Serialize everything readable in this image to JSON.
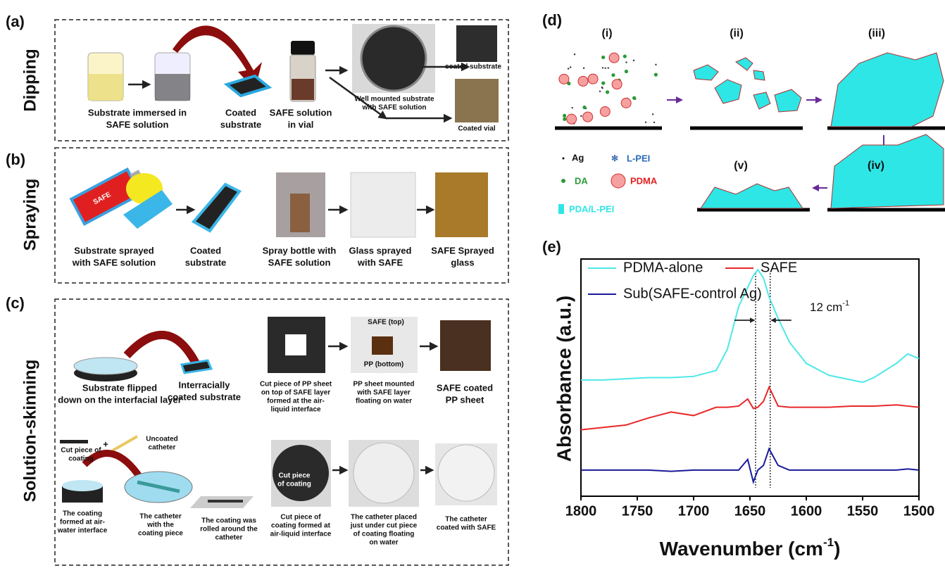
{
  "panel_a": {
    "label": "(a)",
    "title": "Dipping",
    "captions": [
      [
        "Substrate immersed in",
        "SAFE solution"
      ],
      [
        "Coated",
        "substrate"
      ],
      [
        "SAFE solution",
        "in vial"
      ],
      [
        "Well mounted substrate",
        "with SAFE solution"
      ],
      [
        "coated substrate"
      ],
      [
        "Coated vial"
      ]
    ]
  },
  "panel_b": {
    "label": "(b)",
    "title": "Spraying",
    "can_label": "SAFE",
    "captions": [
      [
        "Substrate sprayed",
        "with SAFE solution"
      ],
      [
        "Coated",
        "substrate"
      ],
      [
        "Spray bottle with",
        "SAFE solution"
      ],
      [
        "Glass sprayed",
        "with SAFE"
      ],
      [
        "SAFE Sprayed",
        "glass"
      ]
    ]
  },
  "panel_c": {
    "label": "(c)",
    "title": "Solution-skinning",
    "captions": [
      [
        "Substrate flipped",
        "down on the interfacial layer"
      ],
      [
        "Interracially",
        "coated substrate"
      ],
      [
        "Cut piece of PP sheet",
        "on top of SAFE layer",
        "formed at the air-",
        "liquid interface"
      ],
      [
        "PP sheet mounted",
        "with SAFE layer",
        "floating on water"
      ],
      [
        "SAFE coated",
        "PP sheet"
      ],
      [
        "Uncoated",
        "catheter"
      ],
      [
        "Cut piece of",
        "coating"
      ],
      [
        "The coating",
        "formed at air-",
        "water interface"
      ],
      [
        "The catheter",
        "with the",
        "coating piece"
      ],
      [
        "The coating was",
        "rolled around the",
        "catheter"
      ],
      [
        "Cut piece of",
        "coating formed at",
        "air-liquid interface"
      ],
      [
        "The catheter placed",
        "just under cut piece",
        "of coating floating",
        "on water"
      ],
      [
        "The catheter",
        "coated with SAFE"
      ]
    ],
    "photo_labels": [
      "SAFE (top)",
      "PP (bottom)",
      "Cut piece",
      "of coating"
    ],
    "plus": "+"
  },
  "panel_d": {
    "label": "(d)",
    "stages": [
      "(i)",
      "(ii)",
      "(iii)",
      "(iv)",
      "(v)"
    ],
    "legend": [
      "Ag",
      "L-PEI",
      "DA",
      "PDMA",
      "PDA/L-PEI"
    ]
  },
  "panel_e_label": "(e)",
  "chart_data": {
    "type": "line",
    "x_label": [
      "Wavenumber (cm",
      "-1",
      ")"
    ],
    "y_label": "Absorbance (a.u.)",
    "x": [
      1800,
      1780,
      1760,
      1740,
      1720,
      1700,
      1680,
      1670,
      1660,
      1652,
      1647,
      1643,
      1638,
      1633,
      1625,
      1615,
      1600,
      1580,
      1560,
      1550,
      1540,
      1520,
      1510,
      1500
    ],
    "series": [
      {
        "name": "PDMA-alone",
        "color": "#4ee8e8",
        "values": [
          49,
          49,
          49.5,
          50,
          50,
          50.5,
          53,
          62,
          80,
          88,
          93,
          95.5,
          92,
          84,
          75,
          65,
          56,
          51,
          49,
          48,
          50,
          56,
          60,
          58
        ]
      },
      {
        "name": "SAFE",
        "color": "#e8272a",
        "values": [
          28,
          29,
          30,
          33,
          35.5,
          34,
          37.5,
          37.5,
          38,
          41,
          37,
          37.5,
          40,
          46,
          38,
          37.5,
          37.5,
          37.5,
          38,
          38,
          38,
          38.5,
          38,
          37.5
        ]
      },
      {
        "name": "Sub(SAFE-control Ag)",
        "color": "#1a1a9c",
        "values": [
          11,
          11,
          11,
          11,
          10.5,
          11,
          11,
          11,
          11,
          15.5,
          6,
          11,
          13,
          20,
          13,
          11,
          11,
          11,
          11,
          11,
          11,
          11,
          11.5,
          11
        ]
      }
    ],
    "xlim": [
      1800,
      1500
    ],
    "ylim": [
      0,
      100
    ],
    "xticks": [
      1800,
      1750,
      1700,
      1650,
      1600,
      1550,
      1500
    ],
    "reference_lines": [
      1645,
      1632
    ],
    "annotation": [
      "12 cm",
      "-1"
    ]
  }
}
